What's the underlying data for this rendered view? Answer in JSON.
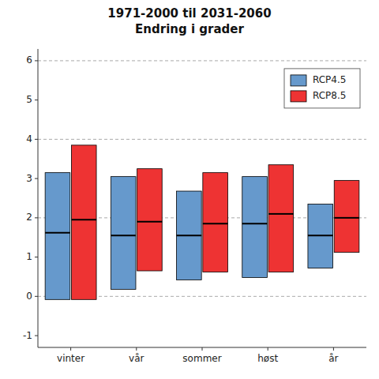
{
  "chart_data": {
    "type": "box",
    "title": "1971-2000 til 2031-2060",
    "subtitle": "Endring i grader",
    "categories": [
      "vinter",
      "vår",
      "sommer",
      "høst",
      "år"
    ],
    "series": [
      {
        "name": "RCP4.5",
        "color": "#6699CC",
        "q1": [
          -0.08,
          0.18,
          0.42,
          0.48,
          0.72
        ],
        "median": [
          1.62,
          1.55,
          1.55,
          1.85,
          1.55
        ],
        "q3": [
          3.15,
          3.05,
          2.68,
          3.05,
          2.35
        ]
      },
      {
        "name": "RCP8.5",
        "color": "#EE3333",
        "q1": [
          -0.08,
          0.65,
          0.62,
          0.62,
          1.12
        ],
        "median": [
          1.95,
          1.9,
          1.85,
          2.1,
          2.0
        ],
        "q3": [
          3.85,
          3.25,
          3.15,
          3.35,
          2.95
        ]
      }
    ],
    "ylim": [
      -1.3,
      6.3
    ],
    "yticks": [
      -1,
      0,
      1,
      2,
      3,
      4,
      5,
      6
    ],
    "grid": [
      0,
      2,
      4,
      6
    ],
    "legend": "upper right"
  }
}
